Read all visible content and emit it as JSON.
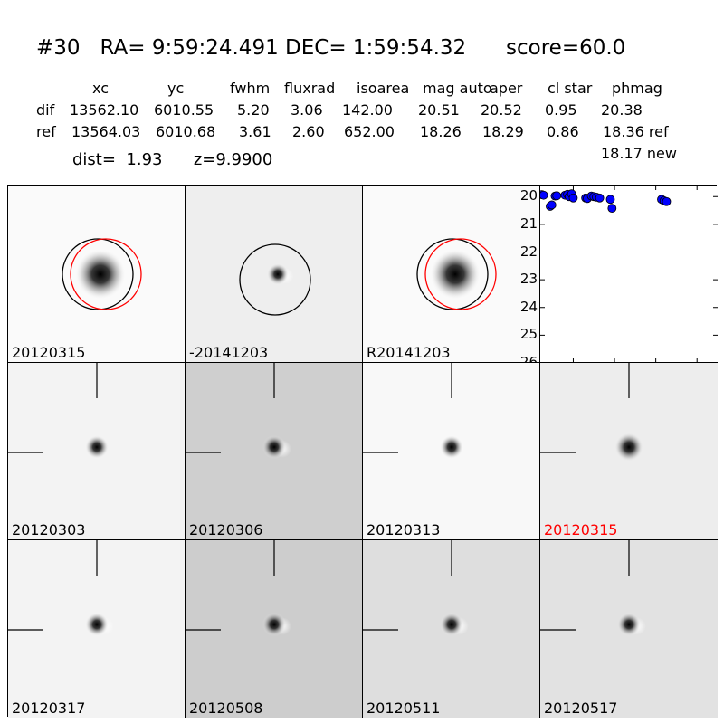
{
  "header": {
    "title": "#30   RA= 9:59:24.491 DEC= 1:59:54.32      score=60.0"
  },
  "table": {
    "columns": [
      "xc",
      "yc",
      "fwhm",
      "fluxrad",
      "isoarea",
      "mag auto",
      "aper",
      "cl star",
      "phmag"
    ],
    "rows": [
      {
        "label": "dif",
        "values": [
          "13562.10",
          "6010.55",
          "5.20",
          "3.06",
          "142.00",
          "20.51",
          "20.52",
          "0.95",
          "20.38"
        ]
      },
      {
        "label": "ref",
        "values": [
          "13564.03",
          "6010.68",
          "3.61",
          "2.60",
          "652.00",
          "18.26",
          "18.29",
          "0.86",
          "18.36 ref"
        ]
      }
    ],
    "extra_phmag": "18.17 new"
  },
  "info": {
    "dist_label": "dist=",
    "dist_value": "1.93",
    "z_label": "z=9.9900"
  },
  "top_panels": [
    {
      "label": "20120315",
      "bg": "#fafafa",
      "circles": [
        "black",
        "red"
      ]
    },
    {
      "label": "-20141203",
      "bg": "#eeeeee",
      "circles": [
        "black"
      ]
    },
    {
      "label": "R20141203",
      "bg": "#fafafa",
      "circles": [
        "black",
        "red"
      ]
    }
  ],
  "stamp_panels": [
    {
      "label": "20120303",
      "bg": "#f3f3f3",
      "highlight": false
    },
    {
      "label": "20120306",
      "bg": "#cfcfcf",
      "highlight": false
    },
    {
      "label": "20120313",
      "bg": "#f8f8f8",
      "highlight": false
    },
    {
      "label": "20120315",
      "bg": "#ededed",
      "highlight": true
    },
    {
      "label": "20120317",
      "bg": "#f3f3f3",
      "highlight": false
    },
    {
      "label": "20120508",
      "bg": "#cdcdcd",
      "highlight": false
    },
    {
      "label": "20120511",
      "bg": "#dedede",
      "highlight": false
    },
    {
      "label": "20120517",
      "bg": "#e2e2e2",
      "highlight": false
    }
  ],
  "colors": {
    "highlight_label": "#ff0000",
    "point_fill": "#0000ff",
    "circle_ref": "#ff0000",
    "circle_dif": "#000000"
  },
  "chart_data": {
    "type": "scatter",
    "title": "",
    "xlabel": "",
    "ylabel": "",
    "xlim": [
      -90,
      125
    ],
    "ylim": [
      26,
      19.6
    ],
    "xticks": [
      "-50",
      "0",
      "50",
      "100"
    ],
    "yticks": [
      "20",
      "21",
      "22",
      "23",
      "24",
      "25",
      "26"
    ],
    "x": [
      -88,
      -86,
      -78,
      -76,
      -72,
      -70,
      -60,
      -57,
      -55,
      -52,
      -50,
      -35,
      -33,
      -28,
      -25,
      -22,
      -18,
      -5,
      -3,
      57,
      60,
      63
    ],
    "y": [
      19.93,
      19.95,
      20.35,
      20.3,
      19.98,
      19.97,
      19.95,
      19.92,
      20.0,
      19.9,
      20.05,
      20.05,
      20.07,
      19.98,
      20.0,
      20.02,
      20.05,
      20.1,
      20.42,
      20.1,
      20.15,
      20.18
    ],
    "marker_color": "#0000ff"
  }
}
